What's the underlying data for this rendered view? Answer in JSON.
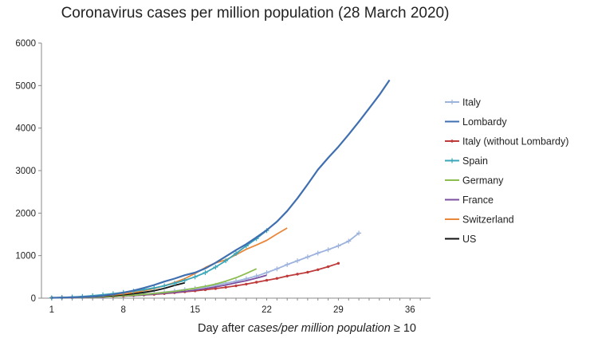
{
  "chart_data": {
    "type": "line",
    "title": "Coronavirus cases per million population (28 March 2020)",
    "xlabel_prefix": "Day after ",
    "xlabel_italic": "cases/per million population",
    "xlabel_suffix": " ≥ 10",
    "ylabel": "",
    "xlim": [
      0,
      38
    ],
    "ylim": [
      0,
      6000
    ],
    "x_ticks": [
      1,
      8,
      15,
      22,
      29,
      36
    ],
    "y_ticks": [
      0,
      1000,
      2000,
      3000,
      4000,
      5000,
      6000
    ],
    "grid": false,
    "legend_position": "right",
    "series": [
      {
        "name": "Italy",
        "color": "#9db3dd",
        "marker": "plus",
        "x": [
          1,
          2,
          3,
          4,
          5,
          6,
          7,
          8,
          9,
          10,
          11,
          12,
          13,
          14,
          15,
          16,
          17,
          18,
          19,
          20,
          21,
          22,
          23,
          24,
          25,
          26,
          27,
          28,
          29,
          30,
          31
        ],
        "values": [
          10,
          13,
          17,
          22,
          28,
          35,
          45,
          58,
          75,
          95,
          115,
          140,
          168,
          200,
          230,
          265,
          305,
          350,
          400,
          455,
          520,
          600,
          690,
          790,
          880,
          970,
          1060,
          1140,
          1230,
          1340,
          1530
        ]
      },
      {
        "name": "Lombardy",
        "color": "#3f6fb0",
        "marker": "none",
        "x": [
          1,
          2,
          3,
          4,
          5,
          6,
          7,
          8,
          9,
          10,
          11,
          12,
          13,
          14,
          15,
          16,
          17,
          18,
          19,
          20,
          21,
          22,
          23,
          24,
          25,
          26,
          27,
          28,
          29,
          30,
          31,
          32,
          33,
          34
        ],
        "values": [
          10,
          14,
          20,
          28,
          40,
          60,
          90,
          130,
          180,
          240,
          310,
          390,
          460,
          540,
          600,
          700,
          830,
          980,
          1130,
          1270,
          1430,
          1600,
          1800,
          2050,
          2350,
          2680,
          3020,
          3300,
          3560,
          3850,
          4150,
          4460,
          4780,
          5130
        ]
      },
      {
        "name": "Italy (without Lombardy)",
        "color": "#bf3b3b",
        "marker": "dot",
        "x": [
          1,
          2,
          3,
          4,
          5,
          6,
          7,
          8,
          9,
          10,
          11,
          12,
          13,
          14,
          15,
          16,
          17,
          18,
          19,
          20,
          21,
          22,
          23,
          24,
          25,
          26,
          27,
          28,
          29
        ],
        "values": [
          10,
          12,
          15,
          19,
          24,
          30,
          38,
          48,
          60,
          75,
          90,
          108,
          128,
          150,
          172,
          198,
          225,
          255,
          290,
          330,
          375,
          420,
          465,
          520,
          565,
          610,
          670,
          740,
          820
        ]
      },
      {
        "name": "Spain",
        "color": "#3aa6b8",
        "marker": "plus",
        "x": [
          1,
          2,
          3,
          4,
          5,
          6,
          7,
          8,
          9,
          10,
          11,
          12,
          13,
          14,
          15,
          16,
          17,
          18,
          19,
          20,
          21,
          22
        ],
        "values": [
          10,
          17,
          27,
          40,
          58,
          80,
          105,
          135,
          165,
          200,
          240,
          290,
          350,
          420,
          500,
          600,
          730,
          880,
          1050,
          1230,
          1400,
          1590
        ]
      },
      {
        "name": "Germany",
        "color": "#8bbd4f",
        "marker": "none",
        "x": [
          1,
          2,
          3,
          4,
          5,
          6,
          7,
          8,
          9,
          10,
          11,
          12,
          13,
          14,
          15,
          16,
          17,
          18,
          19,
          20,
          21
        ],
        "values": [
          10,
          12,
          16,
          20,
          26,
          33,
          42,
          55,
          70,
          90,
          110,
          135,
          160,
          195,
          235,
          280,
          330,
          400,
          480,
          580,
          690
        ]
      },
      {
        "name": "France",
        "color": "#7b4fa0",
        "marker": "none",
        "x": [
          1,
          2,
          3,
          4,
          5,
          6,
          7,
          8,
          9,
          10,
          11,
          12,
          13,
          14,
          15,
          16,
          17,
          18,
          19,
          20,
          21,
          22
        ],
        "values": [
          10,
          12,
          15,
          19,
          24,
          30,
          38,
          48,
          60,
          75,
          95,
          115,
          135,
          160,
          190,
          225,
          265,
          310,
          360,
          410,
          470,
          540
        ]
      },
      {
        "name": "Switzerland",
        "color": "#e8873a",
        "marker": "none",
        "x": [
          1,
          2,
          3,
          4,
          5,
          6,
          7,
          8,
          9,
          10,
          11,
          12,
          13,
          14,
          15,
          16,
          17,
          18,
          19,
          20,
          21,
          22,
          23,
          24
        ],
        "values": [
          10,
          14,
          20,
          28,
          40,
          55,
          75,
          100,
          135,
          175,
          225,
          290,
          370,
          460,
          580,
          720,
          830,
          900,
          1020,
          1150,
          1250,
          1360,
          1510,
          1650
        ]
      },
      {
        "name": "US",
        "color": "#111111",
        "marker": "none",
        "x": [
          1,
          2,
          3,
          4,
          5,
          6,
          7,
          8,
          9,
          10,
          11,
          12,
          13,
          14
        ],
        "values": [
          10,
          14,
          19,
          26,
          35,
          46,
          60,
          80,
          105,
          135,
          175,
          230,
          300,
          360
        ]
      }
    ]
  }
}
